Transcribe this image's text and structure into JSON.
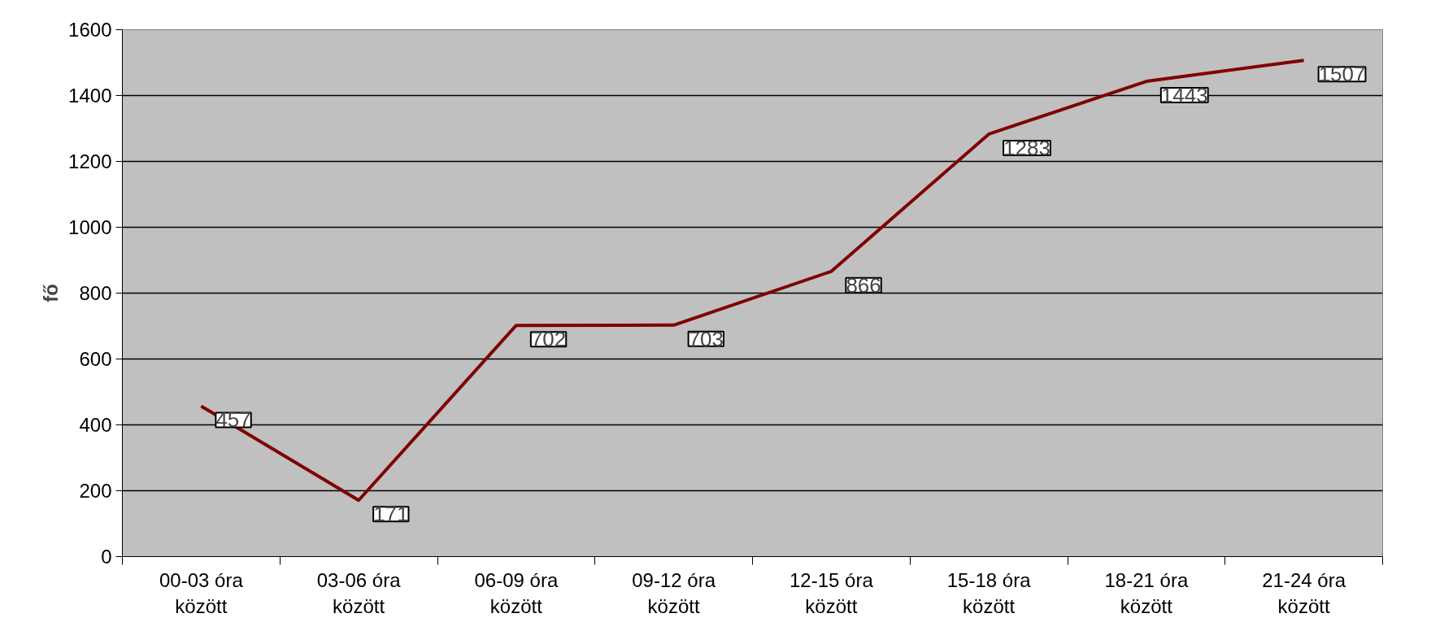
{
  "chart_data": {
    "type": "line",
    "ylabel": "fő",
    "categories": [
      "00-03 óra\nközött",
      "03-06 óra\nközött",
      "06-09 óra\nközött",
      "09-12 óra\nközött",
      "12-15 óra\nközött",
      "15-18 óra\nközött",
      "18-21 óra\nközött",
      "21-24 óra\nközött"
    ],
    "series": [
      {
        "color": "#800000",
        "values": [
          457,
          171,
          702,
          703,
          866,
          1283,
          1443,
          1507
        ]
      }
    ],
    "ylim": [
      0,
      1600
    ],
    "yticks": [
      0,
      200,
      400,
      600,
      800,
      1000,
      1200,
      1400,
      1600
    ],
    "grid": "y",
    "data_labels": true,
    "marker": "none",
    "line_style": "solid"
  }
}
